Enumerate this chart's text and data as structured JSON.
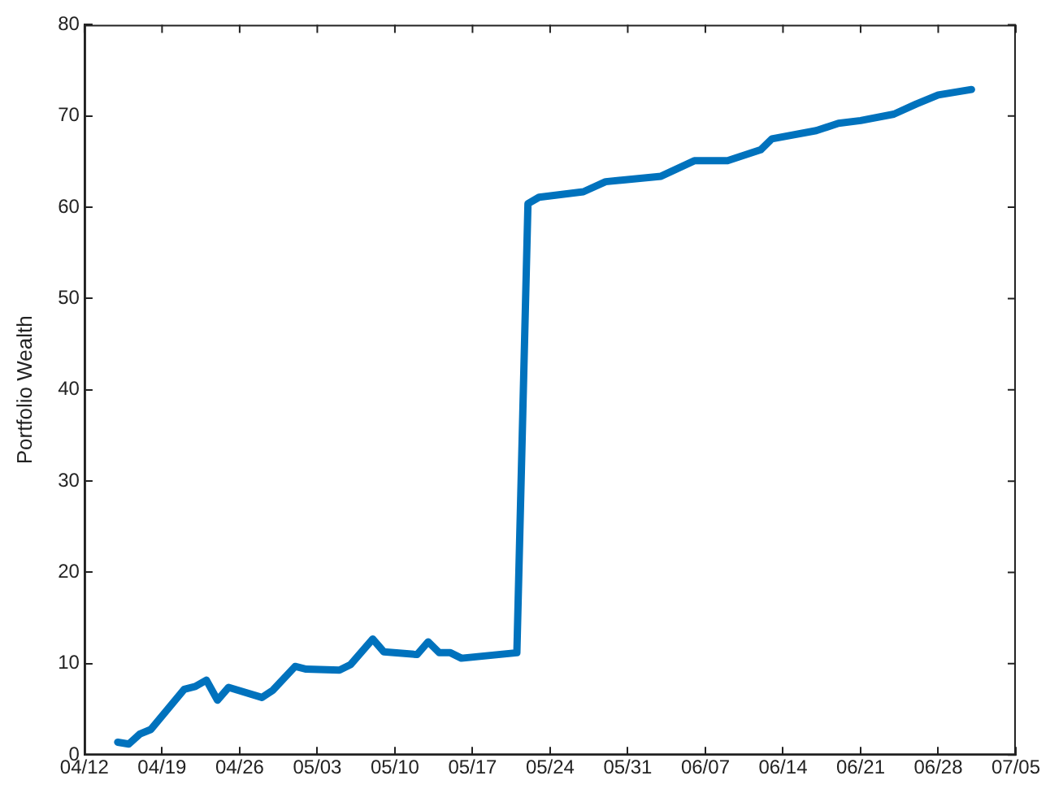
{
  "chart_data": {
    "type": "line",
    "ylabel": "Portfolio Wealth",
    "x": [
      "--04-15",
      "--04-16",
      "--04-17",
      "--04-18",
      "--04-21",
      "--04-22",
      "--04-23",
      "--04-24",
      "--04-25",
      "--04-28",
      "--04-29",
      "--05-01",
      "--05-02",
      "--05-05",
      "--05-06",
      "--05-08",
      "--05-09",
      "--05-12",
      "--05-13",
      "--05-14",
      "--05-15",
      "--05-16",
      "--05-21",
      "--05-22",
      "--05-23",
      "--05-27",
      "--05-29",
      "--06-03",
      "--06-06",
      "--06-09",
      "--06-12",
      "--06-13",
      "--06-17",
      "--06-19",
      "--06-21",
      "--06-24",
      "--06-26",
      "--06-28",
      "--07-01"
    ],
    "series": [
      {
        "color": "#0072bd",
        "values": [
          1.4,
          1.2,
          2.3,
          2.8,
          7.2,
          7.5,
          8.2,
          6.0,
          7.4,
          6.3,
          7.1,
          9.7,
          9.4,
          9.3,
          9.9,
          12.7,
          11.3,
          11.0,
          12.4,
          11.2,
          11.2,
          10.6,
          11.2,
          60.4,
          61.1,
          61.7,
          62.8,
          63.4,
          65.1,
          65.1,
          66.3,
          67.5,
          68.4,
          69.2,
          69.5,
          70.2,
          71.3,
          72.3,
          72.9
        ]
      }
    ],
    "xlim": [
      "--04-12",
      "--07-05"
    ],
    "xticks": [
      {
        "value": "--04-12",
        "label": "04/12"
      },
      {
        "value": "--04-19",
        "label": "04/19"
      },
      {
        "value": "--04-26",
        "label": "04/26"
      },
      {
        "value": "--05-03",
        "label": "05/03"
      },
      {
        "value": "--05-10",
        "label": "05/10"
      },
      {
        "value": "--05-17",
        "label": "05/17"
      },
      {
        "value": "--05-24",
        "label": "05/24"
      },
      {
        "value": "--05-31",
        "label": "05/31"
      },
      {
        "value": "--06-07",
        "label": "06/07"
      },
      {
        "value": "--06-14",
        "label": "06/14"
      },
      {
        "value": "--06-21",
        "label": "06/21"
      },
      {
        "value": "--06-28",
        "label": "06/28"
      },
      {
        "value": "--07-05",
        "label": "07/05"
      }
    ],
    "ylim": [
      0,
      80
    ],
    "yticks": [
      0,
      10,
      20,
      30,
      40,
      50,
      60,
      70,
      80
    ],
    "grid": false,
    "legend": false,
    "marker": "none",
    "line_style": "solid"
  }
}
